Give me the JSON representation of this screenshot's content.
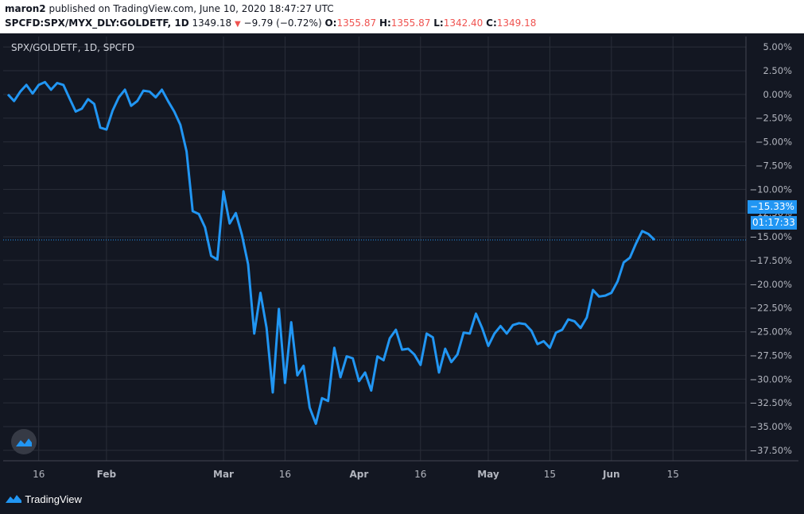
{
  "header": {
    "author": "maron2",
    "published_text": " published on TradingView.com, June 10, 2020 18:47:27 UTC",
    "symbol": "SPCFD:SPX/MYX_DLY:GOLDETF, 1D",
    "last": "1349.18",
    "change": "−9.79 (−0.72%)",
    "o_label": "O:",
    "o_value": "1355.87",
    "h_label": "H:",
    "h_value": "1355.87",
    "l_label": "L:",
    "l_value": "1342.40",
    "c_label": "C:",
    "c_value": "1349.18"
  },
  "legend_title": "SPX/GOLDETF, 1D, SPCFD",
  "price_tag": "−15.33%",
  "time_tag": "01:17:33",
  "footer": {
    "brand": "TradingView"
  },
  "colors": {
    "line": "#2196f3",
    "background": "#131722",
    "grid": "#2a2e39",
    "text": "#b2b5be",
    "down": "#ef5350"
  },
  "chart_data": {
    "type": "line",
    "y_unit": "%",
    "ylim": [
      -38.6,
      6.1
    ],
    "yticks": [
      "5.00%",
      "2.50%",
      "0.00%",
      "−2.50%",
      "−5.00%",
      "−7.50%",
      "−10.00%",
      "−12.50%",
      "−15.00%",
      "−17.50%",
      "−20.00%",
      "−22.50%",
      "−25.00%",
      "−27.50%",
      "−30.00%",
      "−32.50%",
      "−35.00%",
      "−37.50%"
    ],
    "ytick_values": [
      5,
      2.5,
      0,
      -2.5,
      -5,
      -7.5,
      -10,
      -12.5,
      -15,
      -17.5,
      -20,
      -22.5,
      -25,
      -27.5,
      -30,
      -32.5,
      -35,
      -37.5
    ],
    "x_tick_labels": [
      {
        "label": "16",
        "index": 5,
        "bold": false
      },
      {
        "label": "Feb",
        "index": 16,
        "bold": true
      },
      {
        "label": "Mar",
        "index": 35,
        "bold": true
      },
      {
        "label": "16",
        "index": 45,
        "bold": false
      },
      {
        "label": "Apr",
        "index": 57,
        "bold": true
      },
      {
        "label": "16",
        "index": 67,
        "bold": false
      },
      {
        "label": "May",
        "index": 78,
        "bold": true
      },
      {
        "label": "15",
        "index": 88,
        "bold": false
      },
      {
        "label": "Jun",
        "index": 98,
        "bold": true
      },
      {
        "label": "15",
        "index": 108,
        "bold": false
      }
    ],
    "x_count": 110,
    "series": [
      {
        "values": [
          0,
          -0.7,
          0.3,
          1.0,
          0.1,
          1.0,
          1.3,
          0.5,
          1.2,
          1.0,
          -0.4,
          -1.8,
          -1.5,
          -0.5,
          -1.0,
          -3.5,
          -3.7,
          -1.7,
          -0.3,
          0.5,
          -1.2,
          -0.7,
          0.4,
          0.3,
          -0.3,
          0.5,
          -0.7,
          -1.8,
          -3.2,
          -6.0,
          -12.3,
          -12.6,
          -14.0,
          -17.0,
          -17.4,
          -10.2,
          -13.6,
          -12.5,
          -14.8,
          -17.9,
          -25.2,
          -20.9,
          -24.6,
          -31.4,
          -22.6,
          -30.4,
          -24.0,
          -29.6,
          -28.6,
          -33.0,
          -34.7,
          -32.0,
          -32.3,
          -26.7,
          -29.8,
          -27.6,
          -27.8,
          -30.2,
          -29.3,
          -31.2,
          -27.6,
          -28.0,
          -25.7,
          -24.8,
          -26.9,
          -26.8,
          -27.4,
          -28.5,
          -25.2,
          -25.6,
          -29.3,
          -26.8,
          -28.2,
          -27.4,
          -25.1,
          -25.2,
          -23.1,
          -24.6,
          -26.5,
          -25.2,
          -24.4,
          -25.2,
          -24.3,
          -24.1,
          -24.2,
          -24.9,
          -26.3,
          -26.0,
          -26.7,
          -25.1,
          -24.8,
          -23.7,
          -23.9,
          -24.6,
          -23.5,
          -20.6,
          -21.3,
          -21.2,
          -20.9,
          -19.7,
          -17.7,
          -17.2,
          -15.7,
          -14.4,
          -14.7,
          -15.33
        ]
      }
    ]
  }
}
